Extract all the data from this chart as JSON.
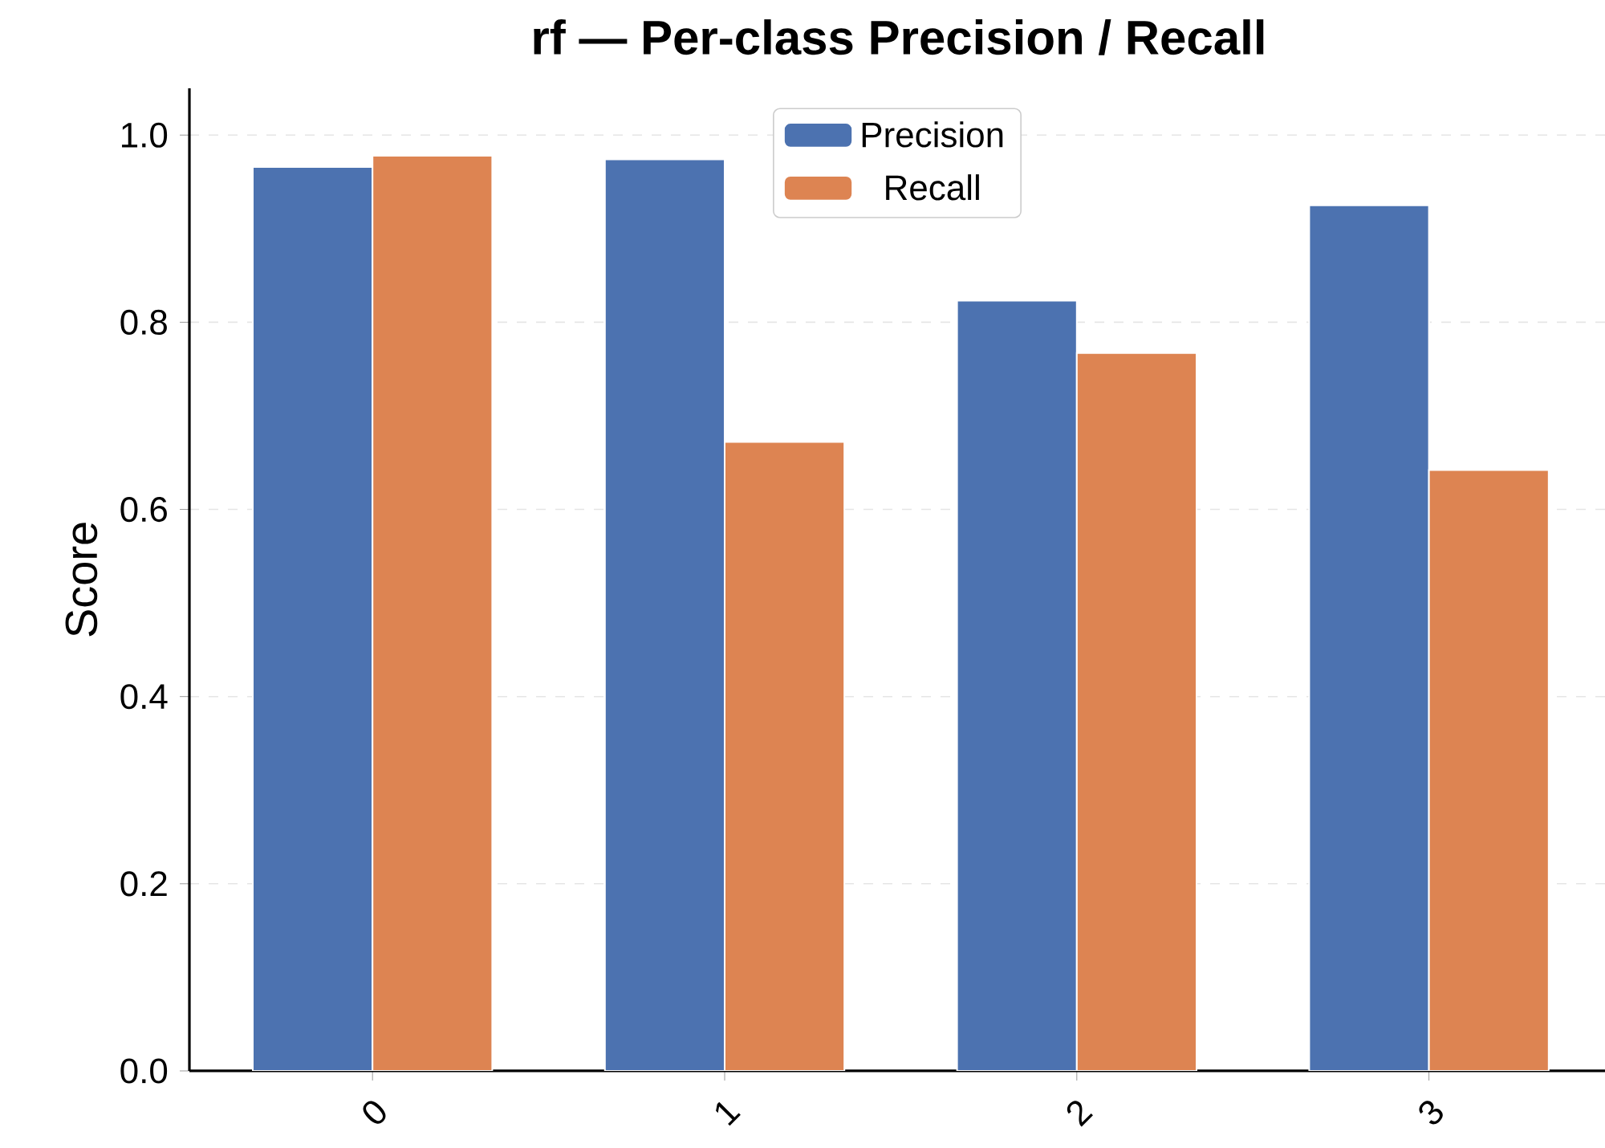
{
  "chart_data": {
    "type": "bar",
    "title": "rf — Per-class Precision / Recall",
    "ylabel": "Score",
    "categories": [
      "0",
      "1",
      "2",
      "3"
    ],
    "series": [
      {
        "name": "Precision",
        "color": "#4c72b0",
        "values": [
          0.966,
          0.974,
          0.823,
          0.925
        ]
      },
      {
        "name": "Recall",
        "color": "#dd8452",
        "values": [
          0.978,
          0.672,
          0.767,
          0.642
        ]
      }
    ],
    "ylim": [
      0,
      1.05
    ],
    "yticks": [
      {
        "value": 0,
        "label": "0.0"
      },
      0.2,
      0.4,
      0.6,
      0.8,
      {
        "value": 1,
        "label": "1.0"
      }
    ],
    "grid": "y",
    "legend": "top"
  }
}
